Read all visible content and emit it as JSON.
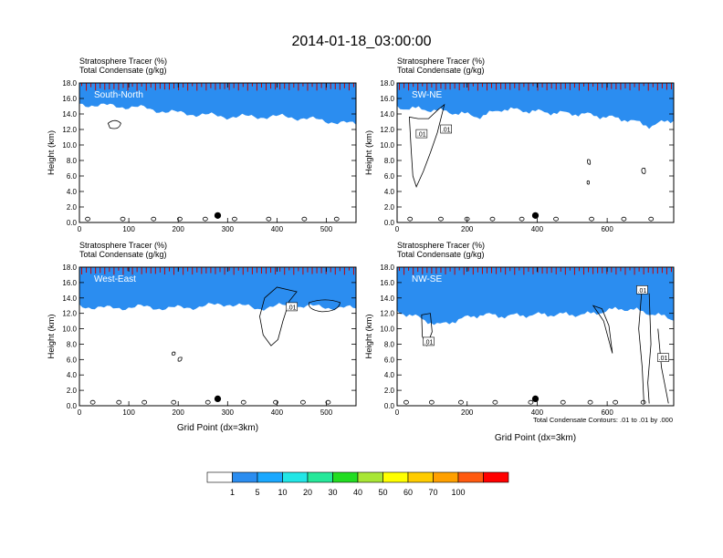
{
  "title": "2014-01-18_03:00:00",
  "colors": {
    "levels": [
      "#ffffff",
      "#2b8df0",
      "#1aa8ff",
      "#22e6e6",
      "#25e89a",
      "#22dd22",
      "#a8e635",
      "#ffff00",
      "#ffcc00",
      "#ffa000",
      "#ff5a10",
      "#ff0000"
    ],
    "contour": "#000000"
  },
  "colorbar": {
    "labels": [
      "1",
      "5",
      "10",
      "20",
      "30",
      "40",
      "50",
      "60",
      "70",
      "100"
    ]
  },
  "footnote": "Total Condensate Contours: .01 to .01 by .000",
  "chart_data": [
    {
      "type": "heatmap",
      "panel_label": "South-North",
      "title_line1": "Stratosphere Tracer   (%)",
      "title_line2": "Total Condensate   (g/kg)",
      "ylabel": "Height (km)",
      "xlabel": "",
      "xlim": [
        0,
        560
      ],
      "ylim": [
        0,
        18
      ],
      "xticks": [
        "0",
        "100",
        "200",
        "300",
        "400",
        "500"
      ],
      "xtick_values": [
        0,
        100,
        200,
        300,
        400,
        500
      ],
      "yticks": [
        "0.0",
        "2.0",
        "4.0",
        "6.0",
        "8.0",
        "10.0",
        "12.0",
        "14.0",
        "16.0",
        "18.0"
      ],
      "ytick_values": [
        0,
        2,
        4,
        6,
        8,
        10,
        12,
        14,
        16,
        18
      ],
      "marker_x": 280,
      "tracer_base_km": [
        [
          0,
          15.6
        ],
        [
          60,
          15.4
        ],
        [
          120,
          15.2
        ],
        [
          180,
          14.6
        ],
        [
          240,
          14.3
        ],
        [
          300,
          14.0
        ],
        [
          360,
          14.0
        ],
        [
          420,
          14.0
        ],
        [
          480,
          13.6
        ],
        [
          520,
          13.3
        ],
        [
          560,
          13.0
        ]
      ],
      "contour_labels": []
    },
    {
      "type": "heatmap",
      "panel_label": "SW-NE",
      "title_line1": "Stratosphere Tracer   (%)",
      "title_line2": "Total Condensate   (g/kg)",
      "ylabel": "Height (km)",
      "xlabel": "",
      "xlim": [
        0,
        790
      ],
      "ylim": [
        0,
        18
      ],
      "xticks": [
        "0",
        "200",
        "400",
        "600"
      ],
      "xtick_values": [
        0,
        200,
        400,
        600
      ],
      "yticks": [
        "0.0",
        "2.0",
        "4.0",
        "6.0",
        "8.0",
        "10.0",
        "12.0",
        "14.0",
        "16.0",
        "18.0"
      ],
      "ytick_values": [
        0,
        2,
        4,
        6,
        8,
        10,
        12,
        14,
        16,
        18
      ],
      "marker_x": 395,
      "tracer_base_km": [
        [
          0,
          15.2
        ],
        [
          120,
          14.8
        ],
        [
          240,
          14.0
        ],
        [
          300,
          15.0
        ],
        [
          420,
          14.6
        ],
        [
          540,
          14.3
        ],
        [
          660,
          13.6
        ],
        [
          720,
          12.8
        ],
        [
          790,
          13.6
        ]
      ],
      "contour_labels": [
        ".01",
        ".01"
      ]
    },
    {
      "type": "heatmap",
      "panel_label": "West-East",
      "title_line1": "Stratosphere Tracer   (%)",
      "title_line2": "Total Condensate   (g/kg)",
      "ylabel": "Height (km)",
      "xlabel": "Grid Point (dx=3km)",
      "xlim": [
        0,
        560
      ],
      "ylim": [
        0,
        18
      ],
      "xticks": [
        "0",
        "100",
        "200",
        "300",
        "400",
        "500"
      ],
      "xtick_values": [
        0,
        100,
        200,
        300,
        400,
        500
      ],
      "yticks": [
        "0.0",
        "2.0",
        "4.0",
        "6.0",
        "8.0",
        "10.0",
        "12.0",
        "14.0",
        "16.0",
        "18.0"
      ],
      "ytick_values": [
        0,
        2,
        4,
        6,
        8,
        10,
        12,
        14,
        16,
        18
      ],
      "marker_x": 280,
      "tracer_base_km": [
        [
          0,
          13.3
        ],
        [
          60,
          13.0
        ],
        [
          120,
          13.2
        ],
        [
          180,
          13.0
        ],
        [
          240,
          13.2
        ],
        [
          300,
          13.6
        ],
        [
          360,
          13.0
        ],
        [
          420,
          13.4
        ],
        [
          480,
          13.2
        ],
        [
          560,
          13.0
        ]
      ],
      "contour_labels": [
        ".01"
      ]
    },
    {
      "type": "heatmap",
      "panel_label": "NW-SE",
      "title_line1": "Stratosphere Tracer   (%)",
      "title_line2": "Total Condensate   (g/kg)",
      "ylabel": "Height (km)",
      "xlabel": "Grid Point (dx=3km)",
      "xlim": [
        0,
        790
      ],
      "ylim": [
        0,
        18
      ],
      "xticks": [
        "0",
        "200",
        "400",
        "600"
      ],
      "xtick_values": [
        0,
        200,
        400,
        600
      ],
      "yticks": [
        "0.0",
        "2.0",
        "4.0",
        "6.0",
        "8.0",
        "10.0",
        "12.0",
        "14.0",
        "16.0",
        "18.0"
      ],
      "ytick_values": [
        0,
        2,
        4,
        6,
        8,
        10,
        12,
        14,
        16,
        18
      ],
      "marker_x": 395,
      "tracer_base_km": [
        [
          0,
          12.6
        ],
        [
          60,
          11.8
        ],
        [
          120,
          10.8
        ],
        [
          180,
          11.6
        ],
        [
          240,
          12.2
        ],
        [
          300,
          12.0
        ],
        [
          420,
          12.2
        ],
        [
          540,
          12.2
        ],
        [
          640,
          13.0
        ],
        [
          700,
          12.6
        ],
        [
          790,
          11.6
        ]
      ],
      "contour_labels": [
        ".01",
        ".01",
        ".01"
      ]
    }
  ]
}
